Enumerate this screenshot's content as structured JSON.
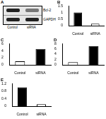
{
  "blot": {
    "label": "A",
    "rows": [
      "Bcl-2",
      "GAPDH"
    ],
    "lanes": [
      "Control",
      "siRNA"
    ]
  },
  "chart_data": [
    {
      "type": "bar",
      "title": "B",
      "categories": [
        "Control",
        "siRNA"
      ],
      "values": [
        1,
        0.15
      ],
      "colors": [
        "#000000",
        "#ffffff"
      ],
      "ylim": [
        0,
        1.5
      ],
      "yticks": [
        0,
        0.5,
        1,
        1.5
      ],
      "grid": false
    },
    {
      "type": "bar",
      "title": "C",
      "categories": [
        "Control",
        "siRNA"
      ],
      "values": [
        1,
        4.5
      ],
      "colors": [
        "#ffffff",
        "#000000"
      ],
      "ylim": [
        0,
        6
      ],
      "yticks": [
        0,
        2,
        4,
        6
      ],
      "grid": false
    },
    {
      "type": "bar",
      "title": "D",
      "categories": [
        "Control",
        "siRNA"
      ],
      "values": [
        1,
        7
      ],
      "colors": [
        "#ffffff",
        "#000000"
      ],
      "ylim": [
        0,
        8
      ],
      "yticks": [
        0,
        2,
        4,
        6,
        8
      ],
      "grid": false
    },
    {
      "type": "bar",
      "title": "E",
      "categories": [
        "Control",
        "siRNA"
      ],
      "values": [
        1,
        0.1
      ],
      "colors": [
        "#000000",
        "#ffffff"
      ],
      "ylim": [
        0,
        1.2
      ],
      "yticks": [
        0,
        0.4,
        0.8,
        1.2
      ],
      "grid": false
    }
  ]
}
